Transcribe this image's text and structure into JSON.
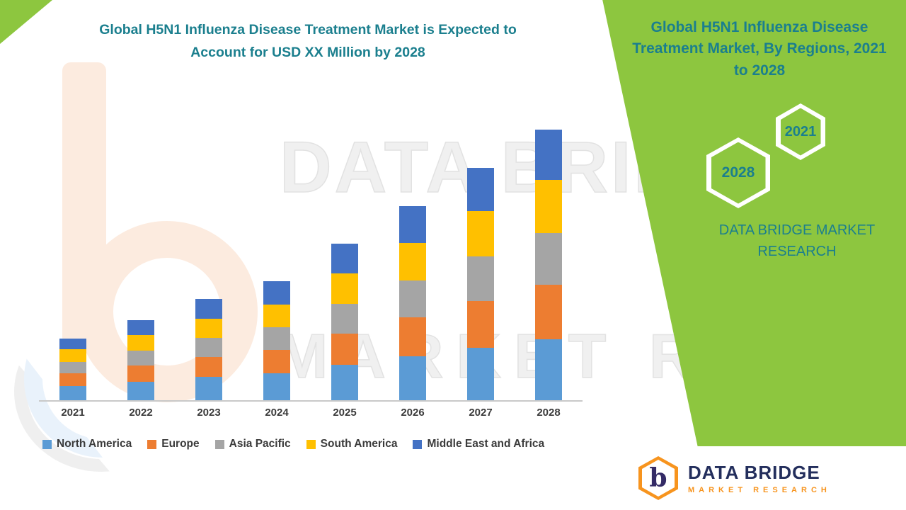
{
  "colors": {
    "accent_green": "#8DC63F",
    "teal": "#1B7F8E",
    "logo_navy": "#232E5C",
    "logo_orange": "#F7941E"
  },
  "main_title": "Global H5N1 Influenza Disease Treatment Market is Expected to Account for USD XX Million by 2028",
  "side_panel": {
    "title": "Global H5N1 Influenza Disease Treatment Market, By Regions, 2021 to 2028",
    "hexagons": [
      {
        "label": "2021"
      },
      {
        "label": "2028"
      }
    ],
    "brand_line": "DATA BRIDGE MARKET RESEARCH"
  },
  "watermark": {
    "line1": "DATA BRIDGE",
    "line2": "MARKET RESEARCH"
  },
  "footer": {
    "logo_letter": "b",
    "brand": "DATA BRIDGE",
    "sub": "MARKET RESEARCH"
  },
  "chart_data": {
    "type": "bar",
    "stacked": true,
    "title": "Global H5N1 Influenza Disease Treatment Market is Expected to Account for USD XX Million by 2028",
    "categories": [
      "2021",
      "2022",
      "2023",
      "2024",
      "2025",
      "2026",
      "2027",
      "2028"
    ],
    "series": [
      {
        "name": "North America",
        "color": "#5B9BD5",
        "values": [
          20,
          26,
          33,
          38,
          50,
          62,
          74,
          86
        ]
      },
      {
        "name": "Europe",
        "color": "#ED7D31",
        "values": [
          18,
          23,
          28,
          33,
          44,
          55,
          66,
          77
        ]
      },
      {
        "name": "Asia Pacific",
        "color": "#A5A5A5",
        "values": [
          16,
          21,
          27,
          32,
          42,
          52,
          63,
          73
        ]
      },
      {
        "name": "South America",
        "color": "#FFC000",
        "values": [
          18,
          22,
          27,
          32,
          43,
          53,
          64,
          75
        ]
      },
      {
        "name": "Middle East and Africa",
        "color": "#4472C4",
        "values": [
          15,
          21,
          28,
          33,
          42,
          52,
          61,
          71
        ]
      }
    ],
    "totals": [
      87,
      113,
      143,
      168,
      221,
      274,
      328,
      382
    ],
    "xlabel": "",
    "ylabel": "",
    "ylim": [
      0,
      400
    ],
    "grid": false,
    "legend_position": "bottom",
    "value_note": "values estimated in relative units; no numeric axis shown in image"
  }
}
